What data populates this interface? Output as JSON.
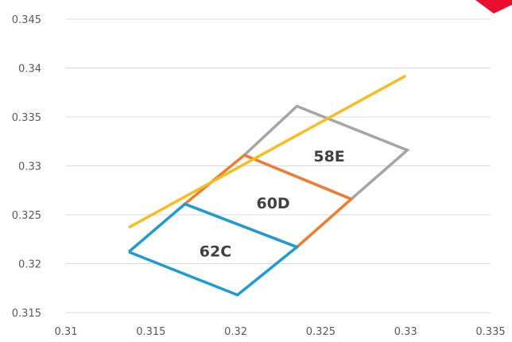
{
  "chart_data": {
    "type": "line",
    "title": "",
    "xlabel": "",
    "ylabel": "",
    "xlim": [
      0.31,
      0.335
    ],
    "ylim": [
      0.315,
      0.345
    ],
    "x_ticks": [
      "0.31",
      "0.315",
      "0.32",
      "0.325",
      "0.33",
      "0.335"
    ],
    "y_ticks": [
      "0.315",
      "0.32",
      "0.325",
      "0.33",
      "0.335",
      "0.34",
      "0.345"
    ],
    "grid": "horizontal",
    "legend": "none",
    "series": [
      {
        "label": "58E",
        "color": "#a5a5a5",
        "points": [
          [
            0.3205,
            0.3311
          ],
          [
            0.3236,
            0.3361
          ],
          [
            0.3301,
            0.3316
          ],
          [
            0.3268,
            0.3266
          ],
          [
            0.3205,
            0.3311
          ]
        ]
      },
      {
        "label": "60D",
        "color": "#ed7d31",
        "points": [
          [
            0.317,
            0.3261
          ],
          [
            0.3205,
            0.3311
          ],
          [
            0.3268,
            0.3266
          ],
          [
            0.3236,
            0.3217
          ],
          [
            0.317,
            0.3261
          ]
        ]
      },
      {
        "label": "62C",
        "color": "#1f9bd1",
        "points": [
          [
            0.3137,
            0.3212
          ],
          [
            0.317,
            0.3261
          ],
          [
            0.3236,
            0.3217
          ],
          [
            0.3201,
            0.3168
          ],
          [
            0.3137,
            0.3212
          ]
        ]
      },
      {
        "color": "#f5bd1f",
        "points": [
          [
            0.3137,
            0.3237
          ],
          [
            0.33,
            0.3392
          ]
        ]
      }
    ],
    "annotations": [
      {
        "text": "58E",
        "x": 0.3255,
        "y": 0.331
      },
      {
        "text": "60D",
        "x": 0.3222,
        "y": 0.3262
      },
      {
        "text": "62C",
        "x": 0.3188,
        "y": 0.3213
      }
    ]
  }
}
